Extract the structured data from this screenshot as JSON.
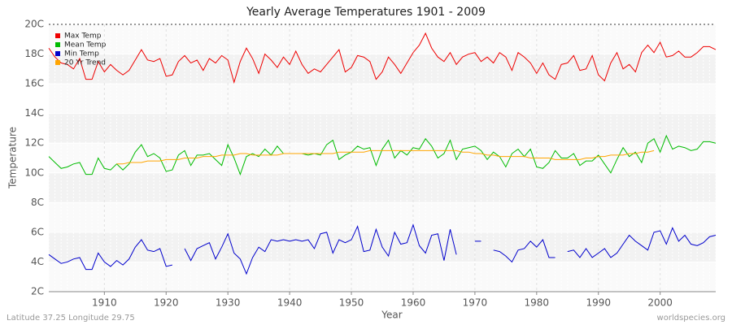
{
  "chart_data": {
    "type": "line",
    "title": "Yearly Average Temperatures 1901 - 2009",
    "xlabel": "Year",
    "ylabel": "Temperature",
    "footer_left": "Latitude 37.25 Longitude 29.75",
    "footer_right": "worldspecies.org",
    "x": [
      1901,
      1902,
      1903,
      1904,
      1905,
      1906,
      1907,
      1908,
      1909,
      1910,
      1911,
      1912,
      1913,
      1914,
      1915,
      1916,
      1917,
      1918,
      1919,
      1920,
      1921,
      1922,
      1923,
      1924,
      1925,
      1926,
      1927,
      1928,
      1929,
      1930,
      1931,
      1932,
      1933,
      1934,
      1935,
      1936,
      1937,
      1938,
      1939,
      1940,
      1941,
      1942,
      1943,
      1944,
      1945,
      1946,
      1947,
      1948,
      1949,
      1950,
      1951,
      1952,
      1953,
      1954,
      1955,
      1956,
      1957,
      1958,
      1959,
      1960,
      1961,
      1962,
      1963,
      1964,
      1965,
      1966,
      1967,
      1968,
      1969,
      1970,
      1971,
      1972,
      1973,
      1974,
      1975,
      1976,
      1977,
      1978,
      1979,
      1980,
      1981,
      1982,
      1983,
      1984,
      1985,
      1986,
      1987,
      1988,
      1989,
      1990,
      1991,
      1992,
      1993,
      1994,
      1995,
      1996,
      1997,
      1998,
      1999,
      2000,
      2001,
      2002,
      2003,
      2004,
      2005,
      2006,
      2007,
      2008,
      2009
    ],
    "xlim": [
      1901,
      2009
    ],
    "xticks": [
      1910,
      1920,
      1930,
      1940,
      1950,
      1960,
      1970,
      1980,
      1990,
      2000
    ],
    "ylim": [
      2,
      20
    ],
    "yticks": [
      {
        "value": 2,
        "label": "2C"
      },
      {
        "value": 4,
        "label": "4C"
      },
      {
        "value": 6,
        "label": "6C"
      },
      {
        "value": 8,
        "label": "8C"
      },
      {
        "value": 10,
        "label": "10C"
      },
      {
        "value": 12,
        "label": "12C"
      },
      {
        "value": 14,
        "label": "14C"
      },
      {
        "value": 16,
        "label": "16C"
      },
      {
        "value": 18,
        "label": "18C"
      },
      {
        "value": 20,
        "label": "20C"
      }
    ],
    "grid": true,
    "legend": "top-left",
    "series": [
      {
        "name": "Max Temp",
        "color": "#ee0000",
        "values": [
          18.4,
          17.8,
          17.4,
          17.3,
          17.0,
          17.7,
          16.3,
          16.3,
          17.5,
          16.8,
          17.3,
          16.9,
          16.6,
          16.9,
          17.6,
          18.3,
          17.6,
          17.5,
          17.7,
          16.5,
          16.6,
          17.5,
          17.9,
          17.4,
          17.6,
          16.9,
          17.7,
          17.4,
          17.9,
          17.6,
          16.1,
          17.5,
          18.4,
          17.7,
          16.7,
          18.0,
          17.6,
          17.1,
          17.8,
          17.3,
          18.2,
          17.3,
          16.7,
          17.0,
          16.8,
          17.3,
          17.8,
          18.3,
          16.8,
          17.1,
          17.9,
          17.8,
          17.5,
          16.3,
          16.8,
          17.8,
          17.3,
          16.7,
          17.4,
          18.1,
          18.6,
          19.4,
          18.4,
          17.8,
          17.5,
          18.1,
          17.3,
          17.8,
          18.0,
          18.1,
          17.5,
          17.8,
          17.4,
          18.1,
          17.8,
          16.9,
          18.1,
          17.8,
          17.4,
          16.7,
          17.4,
          16.6,
          16.3,
          17.3,
          17.4,
          17.9,
          16.9,
          17.0,
          17.9,
          16.6,
          16.2,
          17.4,
          18.1,
          17.0,
          17.3,
          16.8,
          18.1,
          18.6,
          18.1,
          18.8,
          17.8,
          17.9,
          18.2,
          17.8,
          17.8,
          18.1,
          18.5,
          18.5,
          18.3
        ]
      },
      {
        "name": "Mean Temp",
        "color": "#00bb00",
        "values": [
          11.1,
          10.7,
          10.3,
          10.4,
          10.6,
          10.7,
          9.9,
          9.9,
          11.0,
          10.3,
          10.2,
          10.6,
          10.2,
          10.6,
          11.4,
          11.9,
          11.1,
          11.3,
          11.0,
          10.1,
          10.2,
          11.2,
          11.5,
          10.5,
          11.2,
          11.2,
          11.3,
          10.9,
          10.5,
          11.9,
          11.0,
          9.9,
          11.1,
          11.3,
          11.1,
          11.6,
          11.2,
          11.8,
          11.3,
          11.3,
          11.3,
          11.3,
          11.2,
          11.3,
          11.2,
          11.9,
          12.2,
          10.9,
          11.2,
          11.4,
          11.8,
          11.6,
          11.7,
          10.5,
          11.6,
          12.2,
          11.0,
          11.5,
          11.2,
          11.7,
          11.6,
          12.3,
          11.8,
          11.0,
          11.3,
          12.2,
          10.9,
          11.6,
          11.7,
          11.8,
          11.5,
          10.9,
          11.4,
          11.1,
          10.4,
          11.3,
          11.6,
          11.1,
          11.6,
          10.4,
          10.3,
          10.7,
          11.5,
          11.0,
          11.0,
          11.3,
          10.5,
          10.8,
          10.8,
          11.2,
          10.6,
          10.0,
          10.9,
          11.7,
          11.1,
          11.4,
          10.7,
          12.0,
          12.3,
          11.4,
          12.5,
          11.6,
          11.8,
          11.7,
          11.5,
          11.6,
          12.1,
          12.1,
          12.0
        ]
      },
      {
        "name": "Min Temp",
        "color": "#0000cc",
        "values": [
          4.5,
          4.2,
          3.9,
          4.0,
          4.2,
          4.3,
          3.5,
          3.5,
          4.6,
          4.0,
          3.7,
          4.1,
          3.8,
          4.2,
          5.0,
          5.5,
          4.8,
          4.7,
          4.9,
          3.7,
          3.8,
          null,
          4.9,
          4.1,
          4.9,
          5.1,
          5.3,
          4.2,
          5.0,
          5.9,
          4.6,
          4.2,
          3.2,
          4.3,
          5.0,
          4.7,
          5.5,
          5.4,
          5.5,
          5.4,
          5.5,
          5.4,
          5.5,
          4.9,
          5.9,
          6.0,
          4.6,
          5.5,
          5.3,
          5.5,
          6.4,
          4.7,
          4.8,
          6.2,
          5.0,
          4.4,
          6.0,
          5.2,
          5.3,
          6.5,
          5.1,
          4.6,
          5.8,
          5.9,
          4.1,
          6.2,
          4.5,
          null,
          null,
          5.4,
          5.4,
          null,
          4.8,
          4.7,
          4.4,
          4.0,
          4.8,
          4.9,
          5.4,
          5.0,
          5.5,
          4.3,
          4.3,
          null,
          4.7,
          4.8,
          4.3,
          4.9,
          4.3,
          4.6,
          4.9,
          4.3,
          4.6,
          5.2,
          5.8,
          5.4,
          5.1,
          4.8,
          6.0,
          6.1,
          5.2,
          6.3,
          5.4,
          5.8,
          5.2,
          5.1,
          5.3,
          5.7,
          5.8
        ]
      },
      {
        "name": "20 Yr Trend",
        "color": "#ffa500",
        "values": [
          null,
          null,
          null,
          null,
          null,
          null,
          null,
          null,
          null,
          null,
          null,
          10.6,
          10.6,
          10.7,
          10.7,
          10.7,
          10.8,
          10.8,
          10.8,
          10.9,
          10.9,
          10.9,
          11.0,
          11.0,
          11.0,
          11.1,
          11.1,
          11.1,
          11.2,
          11.2,
          11.2,
          11.3,
          11.3,
          11.2,
          11.2,
          11.2,
          11.2,
          11.2,
          11.3,
          11.3,
          11.3,
          11.3,
          11.3,
          11.3,
          11.3,
          11.3,
          11.3,
          11.4,
          11.4,
          11.4,
          11.4,
          11.4,
          11.5,
          11.5,
          11.5,
          11.5,
          11.5,
          11.5,
          11.5,
          11.5,
          11.5,
          11.5,
          11.5,
          11.5,
          11.5,
          11.5,
          11.5,
          11.4,
          11.4,
          11.3,
          11.3,
          11.2,
          11.2,
          11.1,
          11.1,
          11.1,
          11.1,
          11.1,
          11.0,
          11.0,
          11.0,
          11.0,
          10.9,
          10.9,
          10.9,
          10.9,
          10.9,
          11.0,
          11.0,
          11.1,
          11.1,
          11.2,
          11.2,
          11.2,
          11.3,
          11.3,
          11.4,
          11.4,
          11.5,
          null,
          null,
          null,
          null,
          null,
          null,
          null,
          null,
          null,
          null
        ]
      }
    ]
  }
}
